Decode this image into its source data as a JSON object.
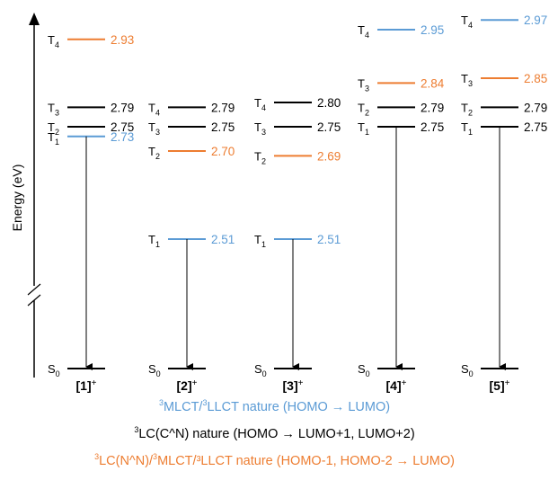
{
  "colors": {
    "blue": "#5b9bd5",
    "black": "#000000",
    "orange": "#ed7d31"
  },
  "axis": {
    "label": "Energy (eV)"
  },
  "ground_state_label": "S",
  "ground_state_sub": "0",
  "complexes": [
    {
      "label_main": "1",
      "label_sup": "+",
      "levels": [
        {
          "state": "T",
          "sub": "4",
          "value": "2.93",
          "nature": "orange"
        },
        {
          "state": "T",
          "sub": "3",
          "value": "2.79",
          "nature": "black"
        },
        {
          "state": "T",
          "sub": "2",
          "value": "2.75",
          "nature": "black"
        },
        {
          "state": "T",
          "sub": "1",
          "value": "2.73",
          "nature": "blue"
        }
      ]
    },
    {
      "label_main": "2",
      "label_sup": "+",
      "levels": [
        {
          "state": "T",
          "sub": "4",
          "value": "2.79",
          "nature": "black"
        },
        {
          "state": "T",
          "sub": "3",
          "value": "2.75",
          "nature": "black"
        },
        {
          "state": "T",
          "sub": "2",
          "value": "2.70",
          "nature": "orange"
        },
        {
          "state": "T",
          "sub": "1",
          "value": "2.51",
          "nature": "blue"
        }
      ]
    },
    {
      "label_main": "3",
      "label_sup": "+",
      "levels": [
        {
          "state": "T",
          "sub": "4",
          "value": "2.80",
          "nature": "black"
        },
        {
          "state": "T",
          "sub": "3",
          "value": "2.75",
          "nature": "black"
        },
        {
          "state": "T",
          "sub": "2",
          "value": "2.69",
          "nature": "orange"
        },
        {
          "state": "T",
          "sub": "1",
          "value": "2.51",
          "nature": "blue"
        }
      ]
    },
    {
      "label_main": "4",
      "label_sup": "+",
      "levels": [
        {
          "state": "T",
          "sub": "4",
          "value": "2.95",
          "nature": "blue"
        },
        {
          "state": "T",
          "sub": "3",
          "value": "2.84",
          "nature": "orange"
        },
        {
          "state": "T",
          "sub": "2",
          "value": "2.79",
          "nature": "black"
        },
        {
          "state": "T",
          "sub": "1",
          "value": "2.75",
          "nature": "black"
        }
      ]
    },
    {
      "label_main": "5",
      "label_sup": "+",
      "levels": [
        {
          "state": "T",
          "sub": "4",
          "value": "2.97",
          "nature": "blue"
        },
        {
          "state": "T",
          "sub": "3",
          "value": "2.85",
          "nature": "orange"
        },
        {
          "state": "T",
          "sub": "2",
          "value": "2.79",
          "nature": "black"
        },
        {
          "state": "T",
          "sub": "1",
          "value": "2.75",
          "nature": "black"
        }
      ]
    }
  ],
  "legend": [
    {
      "sup": "3",
      "t1": "MLCT/",
      "sup2": "3",
      "t2": "LLCT nature (HOMO → LUMO)",
      "nature": "blue"
    },
    {
      "sup": "3",
      "t1": "LC(C^N) nature (HOMO → LUMO+1, LUMO+2)",
      "sup2": "",
      "t2": "",
      "nature": "black"
    },
    {
      "sup": "3",
      "t1": "LC(N^N)/",
      "sup2": "3",
      "t2": "MLCT/³LLCT nature (HOMO-1, HOMO-2 → LUMO)",
      "nature": "orange"
    }
  ]
}
